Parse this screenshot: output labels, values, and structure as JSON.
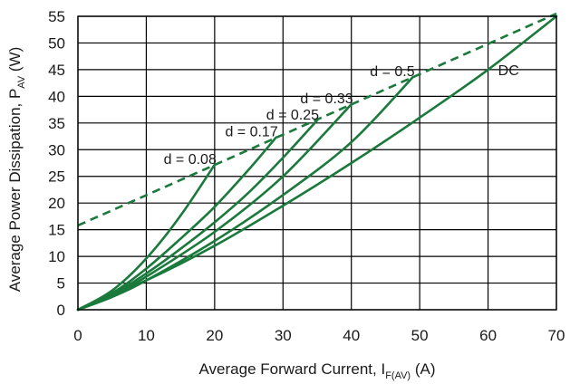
{
  "chart_data": {
    "type": "line",
    "xlabel_main": "Average Forward Current, I",
    "xlabel_sub": "F(AV)",
    "xlabel_unit": " (A)",
    "ylabel_main": "Average Power Dissipation, P",
    "ylabel_sub": "AV",
    "ylabel_unit": " (W)",
    "xlim": [
      0,
      70
    ],
    "ylim": [
      0,
      55
    ],
    "xticks": [
      0,
      10,
      20,
      30,
      40,
      50,
      60,
      70
    ],
    "yticks": [
      0,
      5,
      10,
      15,
      20,
      25,
      30,
      35,
      40,
      45,
      50,
      55
    ],
    "grid": true,
    "colors": {
      "curve": "#1a7a3c"
    },
    "series": [
      {
        "name": "d = 0.08",
        "x": [
          0,
          5,
          10,
          15,
          20
        ],
        "y": [
          0,
          3.6,
          9.6,
          17.6,
          27.2
        ]
      },
      {
        "name": "d = 0.17",
        "x": [
          0,
          5,
          10,
          15,
          20,
          25,
          29
        ],
        "y": [
          0,
          3.1,
          7.7,
          13.3,
          19.3,
          26.3,
          32.3
        ]
      },
      {
        "name": "d = 0.25",
        "x": [
          0,
          5,
          10,
          15,
          20,
          25,
          30,
          35
        ],
        "y": [
          0,
          2.8,
          6.8,
          11.4,
          16.4,
          22.0,
          28.5,
          35.5
        ]
      },
      {
        "name": "d = 0.33",
        "x": [
          0,
          5,
          10,
          20,
          30,
          40
        ],
        "y": [
          0,
          2.6,
          6.2,
          14.6,
          25.0,
          38.5
        ]
      },
      {
        "name": "d = 0.5",
        "x": [
          0,
          5,
          10,
          20,
          30,
          40,
          49
        ],
        "y": [
          0,
          2.4,
          5.5,
          12.9,
          21.5,
          31.4,
          43.6
        ]
      },
      {
        "name": "DC",
        "x": [
          0,
          10,
          20,
          30,
          40,
          50,
          60,
          70
        ],
        "y": [
          0,
          5.5,
          12.0,
          19.5,
          27.5,
          36.0,
          45.0,
          55.0
        ]
      }
    ],
    "limit_line": {
      "style": "dashed",
      "x": [
        0,
        70
      ],
      "y": [
        15.8,
        55.5
      ]
    },
    "labels": [
      {
        "text": "d = 0.08",
        "x": 20,
        "y": 27.2
      },
      {
        "text": "d = 0.17",
        "x": 29,
        "y": 32.3
      },
      {
        "text": "d = 0.25",
        "x": 35,
        "y": 35.5
      },
      {
        "text": "d = 0.33",
        "x": 40,
        "y": 38.5
      },
      {
        "text": "d = 0.5",
        "x": 49,
        "y": 43.6
      },
      {
        "text": "DC",
        "x": 63,
        "y": 45.0
      }
    ]
  }
}
